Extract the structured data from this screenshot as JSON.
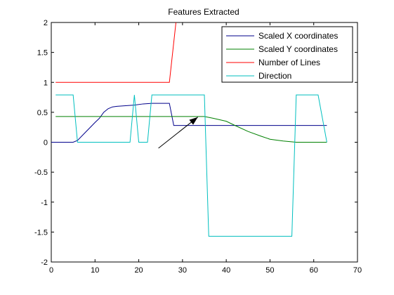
{
  "chart_data": {
    "type": "line",
    "title": "Features Extracted",
    "xlabel": "",
    "ylabel": "",
    "xlim": [
      0,
      70
    ],
    "ylim": [
      -2,
      2
    ],
    "x_ticks": [
      0,
      10,
      20,
      30,
      40,
      50,
      60,
      70
    ],
    "y_ticks": [
      -2,
      -1.5,
      -1,
      -0.5,
      0,
      0.5,
      1,
      1.5,
      2
    ],
    "grid": false,
    "legend_position": "top-right",
    "series": [
      {
        "name": "Scaled X coordinates",
        "color": "#00008b",
        "points": [
          [
            0,
            0
          ],
          [
            5,
            0
          ],
          [
            6,
            0.03
          ],
          [
            8,
            0.18
          ],
          [
            10,
            0.33
          ],
          [
            11,
            0.4
          ],
          [
            12,
            0.5
          ],
          [
            13,
            0.56
          ],
          [
            14,
            0.59
          ],
          [
            15,
            0.6
          ],
          [
            17,
            0.61
          ],
          [
            19,
            0.62
          ],
          [
            21,
            0.64
          ],
          [
            23,
            0.65
          ],
          [
            27,
            0.65
          ],
          [
            28,
            0.28
          ],
          [
            30,
            0.28
          ],
          [
            35,
            0.28
          ],
          [
            40,
            0.28
          ],
          [
            45,
            0.28
          ],
          [
            50,
            0.28
          ],
          [
            55,
            0.28
          ],
          [
            60,
            0.28
          ],
          [
            63,
            0.28
          ]
        ]
      },
      {
        "name": "Scaled Y coordinates",
        "color": "#008000",
        "points": [
          [
            1,
            0.43
          ],
          [
            10,
            0.43
          ],
          [
            20,
            0.43
          ],
          [
            30,
            0.43
          ],
          [
            35,
            0.43
          ],
          [
            37,
            0.4
          ],
          [
            40,
            0.35
          ],
          [
            42,
            0.28
          ],
          [
            45,
            0.18
          ],
          [
            48,
            0.1
          ],
          [
            50,
            0.05
          ],
          [
            53,
            0.02
          ],
          [
            56,
            0
          ],
          [
            60,
            0
          ],
          [
            63,
            0
          ]
        ]
      },
      {
        "name": "Number of Lines",
        "color": "#ff0000",
        "points": [
          [
            1,
            1
          ],
          [
            27,
            1
          ],
          [
            28.5,
            2
          ]
        ]
      },
      {
        "name": "Direction",
        "color": "#00bfbf",
        "points": [
          [
            1,
            0.79
          ],
          [
            5,
            0.79
          ],
          [
            6,
            0
          ],
          [
            18,
            0
          ],
          [
            19,
            0.79
          ],
          [
            20,
            0
          ],
          [
            22,
            0
          ],
          [
            23,
            0.79
          ],
          [
            35,
            0.79
          ],
          [
            36,
            -1.57
          ],
          [
            55,
            -1.57
          ],
          [
            56,
            0.79
          ],
          [
            61,
            0.79
          ],
          [
            63,
            0
          ]
        ]
      }
    ],
    "annotations": [
      {
        "type": "arrow",
        "from": [
          24.5,
          -0.1
        ],
        "to": [
          33.5,
          0.42
        ]
      }
    ]
  }
}
